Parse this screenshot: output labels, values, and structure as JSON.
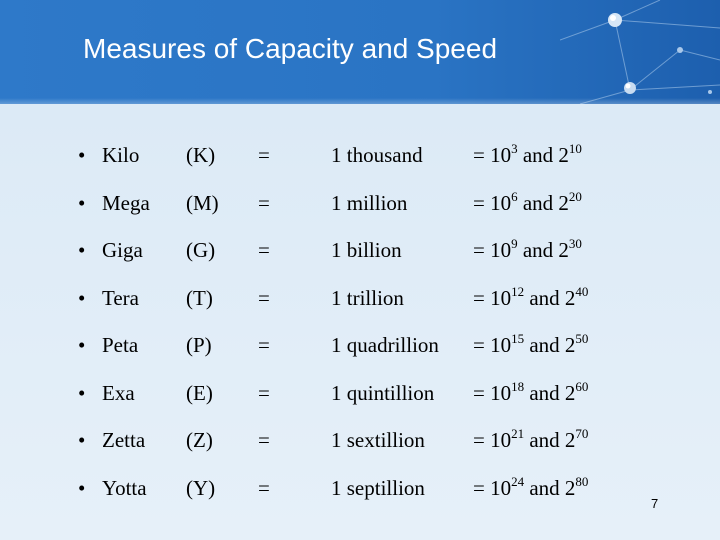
{
  "title": "Measures of Capacity and Speed",
  "rows": [
    {
      "bullet": "•",
      "name": "Kilo",
      "abbr": "(K)",
      "eq": "=",
      "word": "1 thousand",
      "dec_prefix": "= 10",
      "dec_exp": "3",
      "and": " and 2",
      "bin_exp": "10"
    },
    {
      "bullet": "•",
      "name": "Mega",
      "abbr": "(M)",
      "eq": "=",
      "word": "1 million",
      "dec_prefix": "= 10",
      "dec_exp": "6",
      "and": " and 2",
      "bin_exp": "20"
    },
    {
      "bullet": "•",
      "name": "Giga",
      "abbr": "(G)",
      "eq": "=",
      "word": "1 billion",
      "dec_prefix": "= 10",
      "dec_exp": "9",
      "and": " and 2",
      "bin_exp": "30"
    },
    {
      "bullet": "•",
      "name": "Tera",
      "abbr": "(T)",
      "eq": "=",
      "word": "1 trillion",
      "dec_prefix": "= 10",
      "dec_exp": "12",
      "and": " and 2",
      "bin_exp": "40"
    },
    {
      "bullet": "•",
      "name": "Peta",
      "abbr": "(P)",
      "eq": "=",
      "word": "1 quadrillion",
      "dec_prefix": "= 10",
      "dec_exp": "15",
      "and": " and 2",
      "bin_exp": "50"
    },
    {
      "bullet": "•",
      "name": "Exa",
      "abbr": "(E)",
      "eq": "=",
      "word": "1 quintillion",
      "dec_prefix": "= 10",
      "dec_exp": "18",
      "and": " and 2",
      "bin_exp": "60"
    },
    {
      "bullet": "•",
      "name": "Zetta",
      "abbr": "(Z)",
      "eq": "=",
      "word": "1 sextillion",
      "dec_prefix": "= 10",
      "dec_exp": "21",
      "and": " and 2",
      "bin_exp": "70"
    },
    {
      "bullet": "•",
      "name": "Yotta",
      "abbr": "(Y)",
      "eq": "=",
      "word": "1 septillion",
      "dec_prefix": "= 10",
      "dec_exp": "24",
      "and": " and 2",
      "bin_exp": "80"
    }
  ],
  "page_number": "7",
  "colors": {
    "header": "#2e79c9",
    "background": "#e2eef8",
    "title_text": "#ffffff"
  }
}
